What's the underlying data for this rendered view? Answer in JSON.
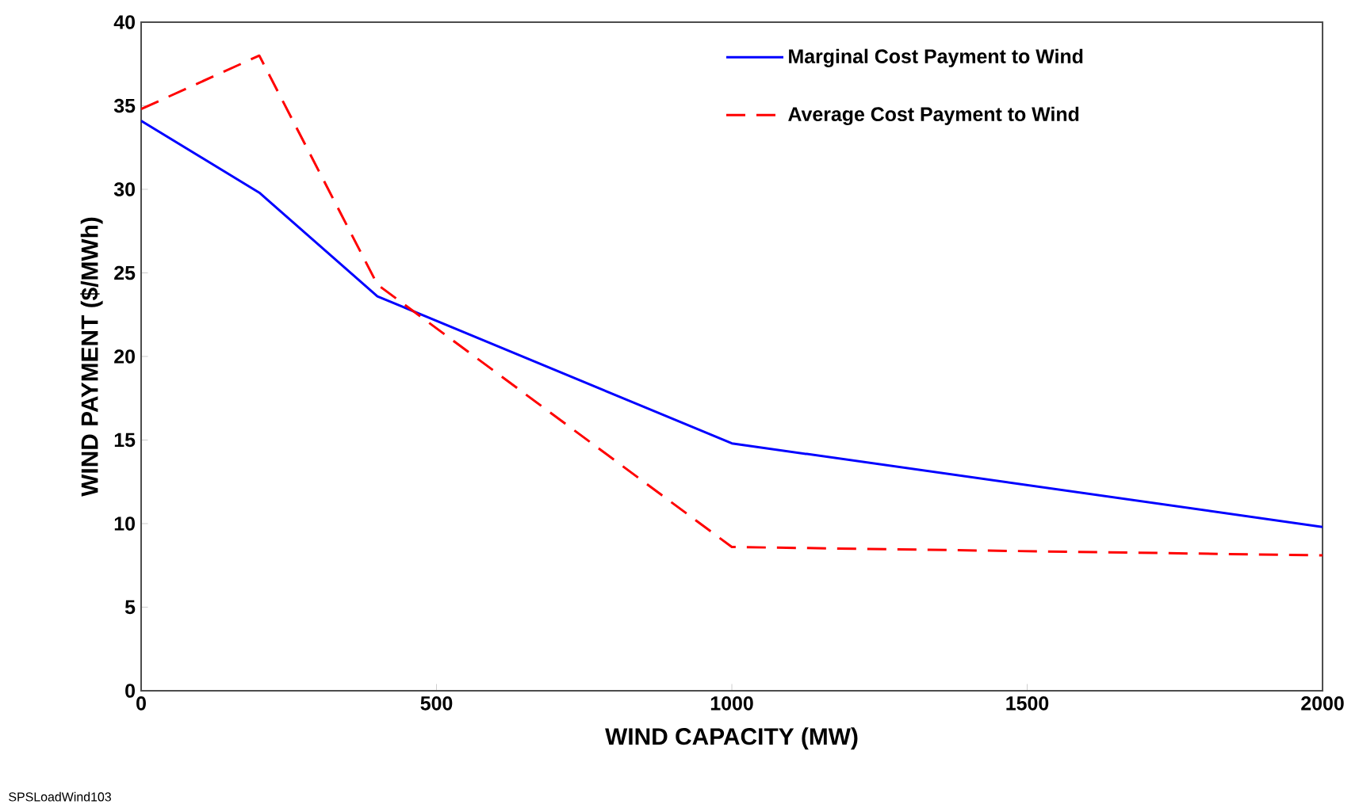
{
  "chart_data": {
    "type": "line",
    "xlabel": "WIND CAPACITY (MW)",
    "ylabel": "WIND PAYMENT ($/MWh)",
    "x": [
      0,
      200,
      400,
      1000,
      2000
    ],
    "series": [
      {
        "name": "Marginal Cost Payment to Wind",
        "color": "#0000ff",
        "values": [
          34.1,
          29.8,
          23.6,
          14.8,
          9.8
        ],
        "line_style": "solid"
      },
      {
        "name": "Average Cost Payment to Wind",
        "color": "#ff0000",
        "values": [
          34.8,
          38.0,
          24.3,
          8.6,
          8.1
        ],
        "line_style": "dashed"
      }
    ],
    "xlim": [
      0,
      2000
    ],
    "xticks": [
      0,
      500,
      1000,
      1500,
      2000
    ],
    "ylim": [
      0,
      40
    ],
    "yticks": [
      0,
      5,
      10,
      15,
      20,
      25,
      30,
      35,
      40
    ],
    "legend": "top right",
    "grid": false,
    "marker": "none",
    "annotations": [
      "SPSLoadWind103"
    ]
  }
}
